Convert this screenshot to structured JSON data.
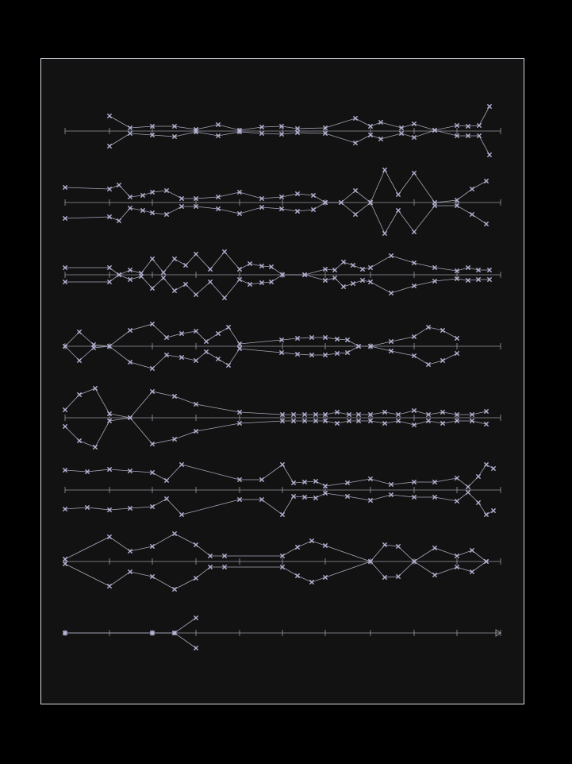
{
  "colors": {
    "background": "#000000",
    "paper": "#121212",
    "frame": "#d8d8e4",
    "axis": "#9a9aa4",
    "line": "#a6a6b8",
    "marker": "#b4b4d6"
  },
  "icons": {
    "marker": "x-mark-icon",
    "node": "node-dot-icon",
    "end": "arrow-end-icon"
  },
  "staves": [
    {
      "label": "row-1",
      "upper": [
        [
          138,
          146
        ],
        [
          164,
          161
        ],
        [
          192,
          159
        ],
        [
          220,
          159
        ],
        [
          247,
          163
        ],
        [
          275,
          157
        ],
        [
          302,
          164
        ],
        [
          330,
          160
        ],
        [
          355,
          159
        ],
        [
          375,
          162
        ],
        [
          410,
          161
        ],
        [
          448,
          149
        ],
        [
          467,
          159
        ],
        [
          480,
          154
        ],
        [
          506,
          161
        ],
        [
          522,
          156
        ],
        [
          548,
          164
        ],
        [
          576,
          158
        ],
        [
          590,
          159
        ],
        [
          604,
          158
        ],
        [
          617,
          134
        ]
      ],
      "lower": [
        [
          138,
          184
        ],
        [
          164,
          168
        ],
        [
          192,
          170
        ],
        [
          220,
          172
        ],
        [
          247,
          166
        ],
        [
          275,
          171
        ],
        [
          302,
          166
        ],
        [
          330,
          168
        ],
        [
          355,
          169
        ],
        [
          375,
          167
        ],
        [
          410,
          168
        ],
        [
          448,
          180
        ],
        [
          467,
          170
        ],
        [
          480,
          175
        ],
        [
          506,
          168
        ],
        [
          522,
          173
        ],
        [
          548,
          164
        ],
        [
          576,
          171
        ],
        [
          590,
          171
        ],
        [
          604,
          171
        ],
        [
          617,
          195
        ]
      ]
    },
    {
      "label": "row-2",
      "upper": [
        [
          82,
          236
        ],
        [
          138,
          238
        ],
        [
          150,
          233
        ],
        [
          164,
          248
        ],
        [
          180,
          246
        ],
        [
          192,
          242
        ],
        [
          210,
          240
        ],
        [
          229,
          250
        ],
        [
          247,
          250
        ],
        [
          275,
          248
        ],
        [
          302,
          242
        ],
        [
          330,
          250
        ],
        [
          355,
          248
        ],
        [
          375,
          244
        ],
        [
          395,
          246
        ],
        [
          410,
          255
        ],
        [
          430,
          255
        ],
        [
          448,
          240
        ],
        [
          467,
          255
        ],
        [
          485,
          214
        ],
        [
          502,
          245
        ],
        [
          522,
          218
        ],
        [
          548,
          255
        ],
        [
          576,
          252
        ],
        [
          595,
          238
        ],
        [
          613,
          228
        ]
      ],
      "lower": [
        [
          82,
          275
        ],
        [
          138,
          273
        ],
        [
          150,
          278
        ],
        [
          164,
          262
        ],
        [
          180,
          265
        ],
        [
          192,
          268
        ],
        [
          210,
          270
        ],
        [
          229,
          260
        ],
        [
          247,
          260
        ],
        [
          275,
          263
        ],
        [
          302,
          269
        ],
        [
          330,
          261
        ],
        [
          355,
          263
        ],
        [
          375,
          266
        ],
        [
          395,
          264
        ],
        [
          410,
          255
        ],
        [
          430,
          255
        ],
        [
          448,
          270
        ],
        [
          467,
          255
        ],
        [
          485,
          294
        ],
        [
          502,
          265
        ],
        [
          522,
          292
        ],
        [
          548,
          259
        ],
        [
          576,
          259
        ],
        [
          595,
          270
        ],
        [
          613,
          282
        ]
      ]
    },
    {
      "label": "row-3",
      "upper": [
        [
          82,
          337
        ],
        [
          138,
          337
        ],
        [
          150,
          346
        ],
        [
          164,
          340
        ],
        [
          178,
          344
        ],
        [
          192,
          326
        ],
        [
          206,
          343
        ],
        [
          220,
          326
        ],
        [
          234,
          334
        ],
        [
          247,
          320
        ],
        [
          265,
          339
        ],
        [
          283,
          317
        ],
        [
          302,
          339
        ],
        [
          315,
          332
        ],
        [
          330,
          335
        ],
        [
          342,
          336
        ],
        [
          356,
          346
        ],
        [
          384,
          346
        ],
        [
          410,
          339
        ],
        [
          422,
          340
        ],
        [
          433,
          330
        ],
        [
          445,
          334
        ],
        [
          457,
          339
        ],
        [
          467,
          337
        ],
        [
          493,
          322
        ],
        [
          522,
          331
        ],
        [
          548,
          337
        ],
        [
          576,
          341
        ],
        [
          590,
          337
        ],
        [
          603,
          340
        ],
        [
          617,
          340
        ]
      ],
      "lower": [
        [
          82,
          355
        ],
        [
          138,
          355
        ],
        [
          150,
          346
        ],
        [
          164,
          352
        ],
        [
          178,
          348
        ],
        [
          192,
          363
        ],
        [
          206,
          350
        ],
        [
          220,
          366
        ],
        [
          234,
          358
        ],
        [
          247,
          371
        ],
        [
          265,
          355
        ],
        [
          283,
          375
        ],
        [
          302,
          352
        ],
        [
          315,
          358
        ],
        [
          330,
          356
        ],
        [
          342,
          355
        ],
        [
          356,
          346
        ],
        [
          384,
          346
        ],
        [
          410,
          353
        ],
        [
          422,
          350
        ],
        [
          433,
          361
        ],
        [
          445,
          357
        ],
        [
          457,
          353
        ],
        [
          467,
          355
        ],
        [
          493,
          369
        ],
        [
          522,
          360
        ],
        [
          548,
          354
        ],
        [
          576,
          351
        ],
        [
          590,
          353
        ],
        [
          603,
          352
        ],
        [
          617,
          352
        ]
      ]
    },
    {
      "label": "row-4",
      "upper": [
        [
          82,
          436
        ],
        [
          100,
          418
        ],
        [
          118,
          434
        ],
        [
          138,
          436
        ],
        [
          164,
          416
        ],
        [
          192,
          408
        ],
        [
          210,
          425
        ],
        [
          229,
          420
        ],
        [
          247,
          417
        ],
        [
          260,
          430
        ],
        [
          275,
          420
        ],
        [
          288,
          412
        ],
        [
          302,
          433
        ],
        [
          355,
          428
        ],
        [
          375,
          426
        ],
        [
          393,
          425
        ],
        [
          410,
          425
        ],
        [
          425,
          427
        ],
        [
          438,
          428
        ],
        [
          452,
          436
        ],
        [
          467,
          436
        ],
        [
          493,
          430
        ],
        [
          522,
          424
        ],
        [
          540,
          412
        ],
        [
          558,
          416
        ],
        [
          576,
          426
        ]
      ],
      "lower": [
        [
          82,
          436
        ],
        [
          100,
          454
        ],
        [
          118,
          438
        ],
        [
          138,
          436
        ],
        [
          164,
          456
        ],
        [
          192,
          464
        ],
        [
          210,
          447
        ],
        [
          229,
          450
        ],
        [
          247,
          454
        ],
        [
          260,
          443
        ],
        [
          275,
          452
        ],
        [
          288,
          460
        ],
        [
          302,
          439
        ],
        [
          355,
          444
        ],
        [
          375,
          446
        ],
        [
          393,
          447
        ],
        [
          410,
          447
        ],
        [
          425,
          445
        ],
        [
          438,
          444
        ],
        [
          452,
          436
        ],
        [
          467,
          436
        ],
        [
          493,
          442
        ],
        [
          522,
          448
        ],
        [
          540,
          459
        ],
        [
          558,
          454
        ],
        [
          576,
          445
        ]
      ]
    },
    {
      "label": "row-5",
      "upper": [
        [
          82,
          516
        ],
        [
          100,
          497
        ],
        [
          120,
          489
        ],
        [
          138,
          521
        ],
        [
          164,
          526
        ],
        [
          192,
          493
        ],
        [
          220,
          499
        ],
        [
          247,
          509
        ],
        [
          302,
          519
        ],
        [
          356,
          522
        ],
        [
          370,
          522
        ],
        [
          384,
          522
        ],
        [
          398,
          522
        ],
        [
          410,
          522
        ],
        [
          425,
          519
        ],
        [
          440,
          522
        ],
        [
          452,
          522
        ],
        [
          467,
          522
        ],
        [
          485,
          519
        ],
        [
          502,
          522
        ],
        [
          522,
          517
        ],
        [
          540,
          522
        ],
        [
          558,
          519
        ],
        [
          576,
          522
        ],
        [
          595,
          522
        ],
        [
          613,
          518
        ]
      ],
      "lower": [
        [
          82,
          537
        ],
        [
          100,
          555
        ],
        [
          120,
          563
        ],
        [
          138,
          530
        ],
        [
          164,
          526
        ],
        [
          192,
          559
        ],
        [
          220,
          553
        ],
        [
          247,
          543
        ],
        [
          302,
          533
        ],
        [
          356,
          530
        ],
        [
          370,
          530
        ],
        [
          384,
          530
        ],
        [
          398,
          530
        ],
        [
          410,
          530
        ],
        [
          425,
          533
        ],
        [
          440,
          530
        ],
        [
          452,
          530
        ],
        [
          467,
          530
        ],
        [
          485,
          533
        ],
        [
          502,
          530
        ],
        [
          522,
          535
        ],
        [
          540,
          530
        ],
        [
          558,
          533
        ],
        [
          576,
          530
        ],
        [
          595,
          530
        ],
        [
          613,
          534
        ]
      ]
    },
    {
      "label": "row-6",
      "upper": [
        [
          82,
          592
        ],
        [
          110,
          594
        ],
        [
          138,
          591
        ],
        [
          164,
          593
        ],
        [
          192,
          595
        ],
        [
          210,
          605
        ],
        [
          229,
          585
        ],
        [
          302,
          604
        ],
        [
          330,
          604
        ],
        [
          356,
          585
        ],
        [
          370,
          608
        ],
        [
          384,
          607
        ],
        [
          398,
          606
        ],
        [
          410,
          612
        ],
        [
          438,
          608
        ],
        [
          467,
          603
        ],
        [
          493,
          610
        ],
        [
          522,
          607
        ],
        [
          548,
          607
        ],
        [
          576,
          602
        ],
        [
          590,
          613
        ],
        [
          603,
          600
        ],
        [
          613,
          585
        ],
        [
          622,
          590
        ]
      ],
      "lower": [
        [
          82,
          641
        ],
        [
          110,
          639
        ],
        [
          138,
          642
        ],
        [
          164,
          640
        ],
        [
          192,
          638
        ],
        [
          210,
          628
        ],
        [
          229,
          648
        ],
        [
          302,
          629
        ],
        [
          330,
          629
        ],
        [
          356,
          648
        ],
        [
          370,
          625
        ],
        [
          384,
          626
        ],
        [
          398,
          627
        ],
        [
          410,
          621
        ],
        [
          438,
          625
        ],
        [
          467,
          630
        ],
        [
          493,
          623
        ],
        [
          522,
          626
        ],
        [
          548,
          626
        ],
        [
          576,
          631
        ],
        [
          590,
          620
        ],
        [
          603,
          633
        ],
        [
          613,
          648
        ],
        [
          622,
          643
        ]
      ]
    },
    {
      "label": "row-7",
      "upper": [
        [
          82,
          704
        ],
        [
          138,
          676
        ],
        [
          164,
          694
        ],
        [
          192,
          688
        ],
        [
          220,
          672
        ],
        [
          247,
          686
        ],
        [
          265,
          700
        ],
        [
          283,
          700
        ],
        [
          356,
          700
        ],
        [
          375,
          689
        ],
        [
          393,
          681
        ],
        [
          410,
          687
        ],
        [
          467,
          707
        ],
        [
          485,
          686
        ],
        [
          502,
          688
        ],
        [
          522,
          707
        ],
        [
          548,
          690
        ],
        [
          576,
          700
        ],
        [
          595,
          693
        ],
        [
          613,
          707
        ]
      ],
      "lower": [
        [
          82,
          710
        ],
        [
          138,
          738
        ],
        [
          164,
          720
        ],
        [
          192,
          726
        ],
        [
          220,
          742
        ],
        [
          247,
          728
        ],
        [
          265,
          714
        ],
        [
          283,
          714
        ],
        [
          356,
          714
        ],
        [
          375,
          725
        ],
        [
          393,
          733
        ],
        [
          410,
          727
        ],
        [
          467,
          707
        ],
        [
          485,
          727
        ],
        [
          502,
          726
        ],
        [
          522,
          707
        ],
        [
          548,
          724
        ],
        [
          576,
          714
        ],
        [
          595,
          720
        ],
        [
          613,
          707
        ]
      ]
    },
    {
      "label": "row-8",
      "upper": [
        [
          82,
          797
        ],
        [
          192,
          797
        ],
        [
          220,
          797
        ],
        [
          247,
          778
        ]
      ],
      "lower": [
        [
          82,
          797
        ],
        [
          192,
          797
        ],
        [
          220,
          797
        ],
        [
          247,
          816
        ]
      ]
    }
  ],
  "axis": {
    "ticks": [
      82,
      138,
      192,
      247,
      302,
      356,
      410,
      467,
      522,
      576,
      631
    ],
    "x_start": 82,
    "x_end": 631,
    "rows_y": [
      165,
      255,
      346,
      436,
      526,
      617,
      707,
      797
    ]
  }
}
